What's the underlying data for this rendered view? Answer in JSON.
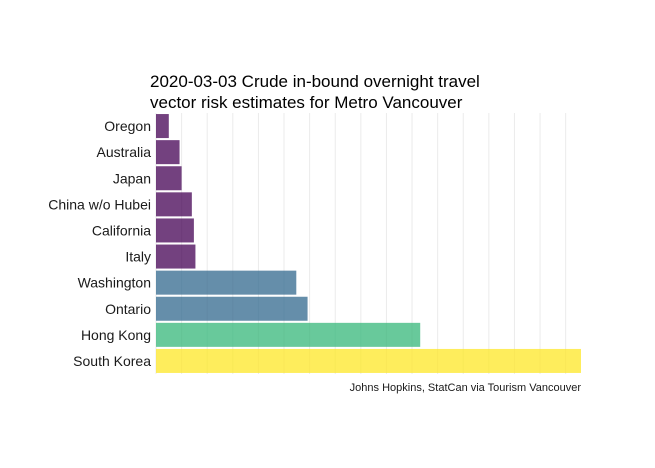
{
  "chart_data": {
    "type": "bar",
    "orientation": "horizontal",
    "title": [
      "2020-03-03 Crude in-bound overnight travel",
      "vector risk estimates for Metro Vancouver"
    ],
    "xlabel": "",
    "ylabel": "",
    "caption": "Johns Hopkins, StatCan via Tourism Vancouver",
    "categories": [
      "Oregon",
      "Australia",
      "Japan",
      "China w/o Hubei",
      "California",
      "Italy",
      "Washington",
      "Ontario",
      "Hong Kong",
      "South Korea"
    ],
    "values": [
      2.5,
      4.6,
      5.0,
      7.0,
      7.4,
      7.7,
      27.4,
      29.6,
      51.6,
      83.0
    ],
    "colors": [
      "#440154",
      "#440154",
      "#440154",
      "#440154",
      "#440154",
      "#440154",
      "#31688e",
      "#31688e",
      "#35b779",
      "#fde725"
    ],
    "bar_opacity": 0.75,
    "xlim": [
      0,
      83.0
    ],
    "grid": true
  }
}
